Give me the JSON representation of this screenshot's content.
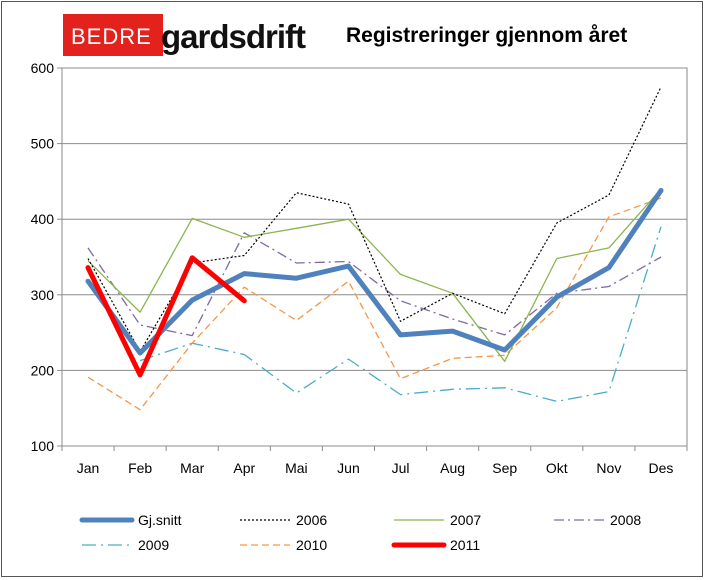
{
  "header": {
    "logo_red": "BEDRE",
    "logo_black": "gardsdrift"
  },
  "chart_data": {
    "type": "line",
    "title": "Registreringer gjennom året",
    "categories": [
      "Jan",
      "Feb",
      "Mar",
      "Apr",
      "Mai",
      "Jun",
      "Jul",
      "Aug",
      "Sep",
      "Okt",
      "Nov",
      "Des"
    ],
    "ylim": [
      100,
      600
    ],
    "yticks": [
      100,
      200,
      300,
      400,
      500,
      600
    ],
    "grid": true,
    "legend_position": "bottom",
    "series": [
      {
        "name": "Gj.snitt",
        "color": "#4f81bd",
        "style": "solid-thick",
        "values": [
          318,
          223,
          293,
          328,
          322,
          338,
          247,
          252,
          227,
          297,
          336,
          438
        ]
      },
      {
        "name": "2006",
        "color": "#000000",
        "style": "dotted",
        "values": [
          348,
          225,
          342,
          352,
          435,
          420,
          265,
          302,
          275,
          395,
          432,
          575
        ]
      },
      {
        "name": "2007",
        "color": "#8bb54d",
        "style": "solid-thin",
        "values": [
          345,
          277,
          401,
          376,
          388,
          400,
          327,
          302,
          212,
          348,
          362,
          440
        ]
      },
      {
        "name": "2008",
        "color": "#7f69a3",
        "style": "dash-dot",
        "values": [
          362,
          260,
          246,
          382,
          342,
          344,
          292,
          268,
          247,
          302,
          311,
          350
        ]
      },
      {
        "name": "2009",
        "color": "#4bacc6",
        "style": "long-dash-dot",
        "values": null
      },
      {
        "name": "2010",
        "color": "#f79646",
        "style": "dashed",
        "values": [
          191,
          148,
          236,
          310,
          266,
          318,
          189,
          216,
          220,
          283,
          403,
          428
        ]
      },
      {
        "name": "2011",
        "color": "#ff0000",
        "style": "solid-thick",
        "values": [
          336,
          194,
          349,
          292,
          null,
          null,
          null,
          null,
          null,
          null,
          null,
          null
        ]
      }
    ],
    "series_2009_values": [
      null,
      213,
      236,
      221,
      170,
      215,
      168,
      175,
      177,
      159,
      172,
      390
    ]
  }
}
